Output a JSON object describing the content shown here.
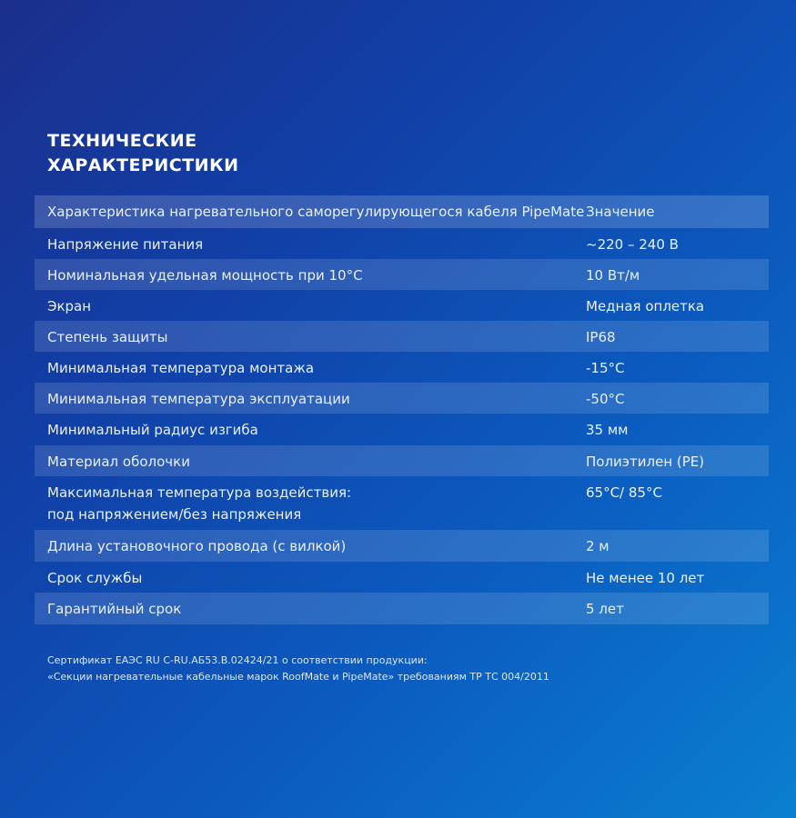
{
  "title": {
    "line1": "Технические",
    "line2": "характеристики"
  },
  "table": {
    "header": {
      "key": "Характеристика нагревательного саморегулирующегося кабеля PipeMate",
      "value": "Значение"
    },
    "rows": [
      {
        "key": "Напряжение питания",
        "value": "~220 – 240 В"
      },
      {
        "key": "Номинальная удельная мощность при 10°C",
        "value": "10 Вт/м"
      },
      {
        "key": "Экран",
        "value": "Медная оплетка"
      },
      {
        "key": "Степень защиты",
        "value": "IP68"
      },
      {
        "key": "Минимальная температура монтажа",
        "value": "-15°C"
      },
      {
        "key": "Минимальная температура эксплуатации",
        "value": "-50°C"
      },
      {
        "key": "Минимальный радиус изгиба",
        "value": "35 мм"
      },
      {
        "key": "Материал оболочки",
        "value": "Полиэтилен (PE)"
      },
      {
        "key": "Максимальная температура воздействия:",
        "key2": "под напряжением/без напряжения",
        "value": "65°C/ 85°C"
      },
      {
        "key": "Длина установочного провода (с вилкой)",
        "value": "2 м"
      },
      {
        "key": "Срок службы",
        "value": "Не менее 10 лет"
      },
      {
        "key": "Гарантийный срок",
        "value": "5 лет"
      }
    ]
  },
  "certificate": {
    "line1": "Сертификат ЕАЭС RU C-RU.АБ53.В.02424/21 о соответствии продукции:",
    "line2": "«Секции нагревательные кабельные марок RoofMate и PipeMate» требованиям ТР ТС 004/2011"
  }
}
